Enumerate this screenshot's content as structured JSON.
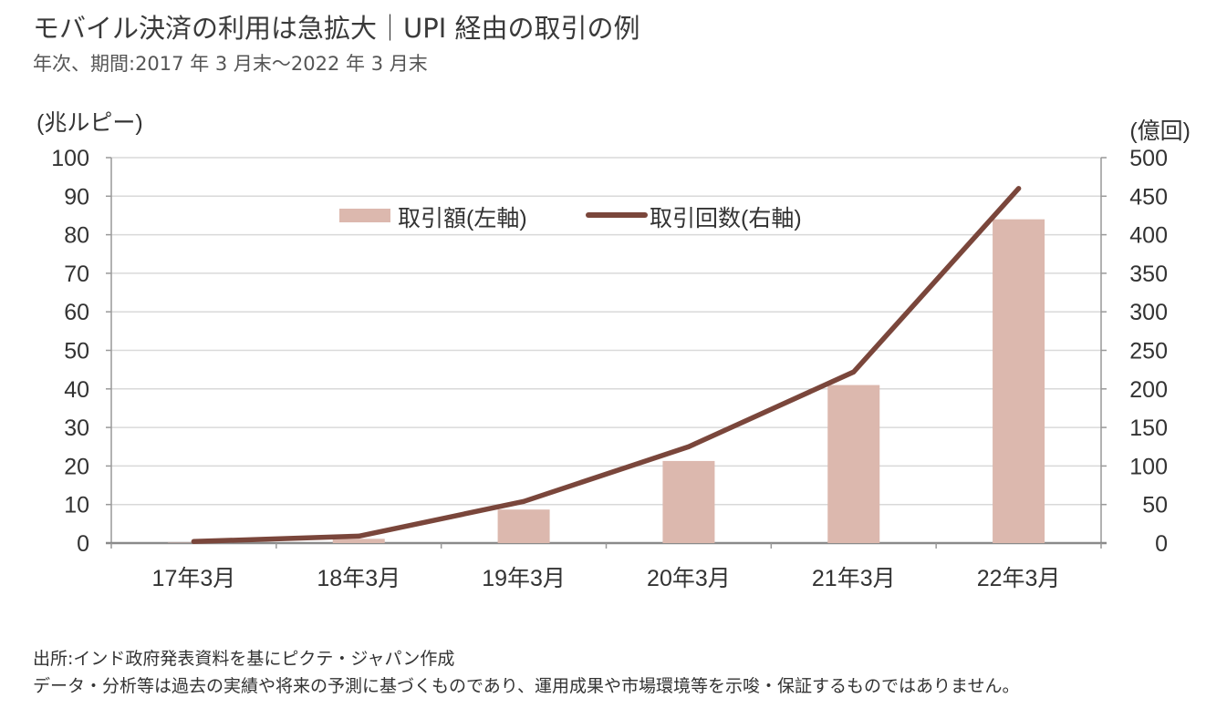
{
  "header": {
    "title": "モバイル決済の利用は急拡大｜UPI 経由の取引の例",
    "subtitle": "年次、期間:2017 年 3 月末～2022 年 3 月末"
  },
  "footer": {
    "source": "出所:インド政府発表資料を基にピクテ・ジャパン作成",
    "disclaimer": "データ・分析等は過去の実績や将来の予測に基づくものであり、運用成果や市場環境等を示唆・保証するものではありません。"
  },
  "colors": {
    "bar": "#dcb8ae",
    "line": "#7a463b",
    "grid": "#d9d9d9",
    "axis": "#999999"
  },
  "chart_data": {
    "type": "bar",
    "categories": [
      "17年3月",
      "18年3月",
      "19年3月",
      "20年3月",
      "21年3月",
      "22年3月"
    ],
    "series": [
      {
        "name": "取引額(左軸)",
        "type": "bar",
        "axis": "left",
        "values": [
          0.1,
          1.1,
          8.7,
          21.3,
          41.0,
          84.0
        ]
      },
      {
        "name": "取引回数(右軸)",
        "type": "line",
        "axis": "right",
        "values": [
          2,
          9,
          54,
          125,
          222,
          460
        ]
      }
    ],
    "y_left": {
      "label": "(兆ルピー)",
      "min": 0,
      "max": 100,
      "ticks": [
        0,
        10,
        20,
        30,
        40,
        50,
        60,
        70,
        80,
        90,
        100
      ]
    },
    "y_right": {
      "label": "(億回)",
      "min": 0,
      "max": 500,
      "ticks": [
        0,
        50,
        100,
        150,
        200,
        250,
        300,
        350,
        400,
        450,
        500
      ]
    },
    "grid": true,
    "legend": "top-center"
  }
}
